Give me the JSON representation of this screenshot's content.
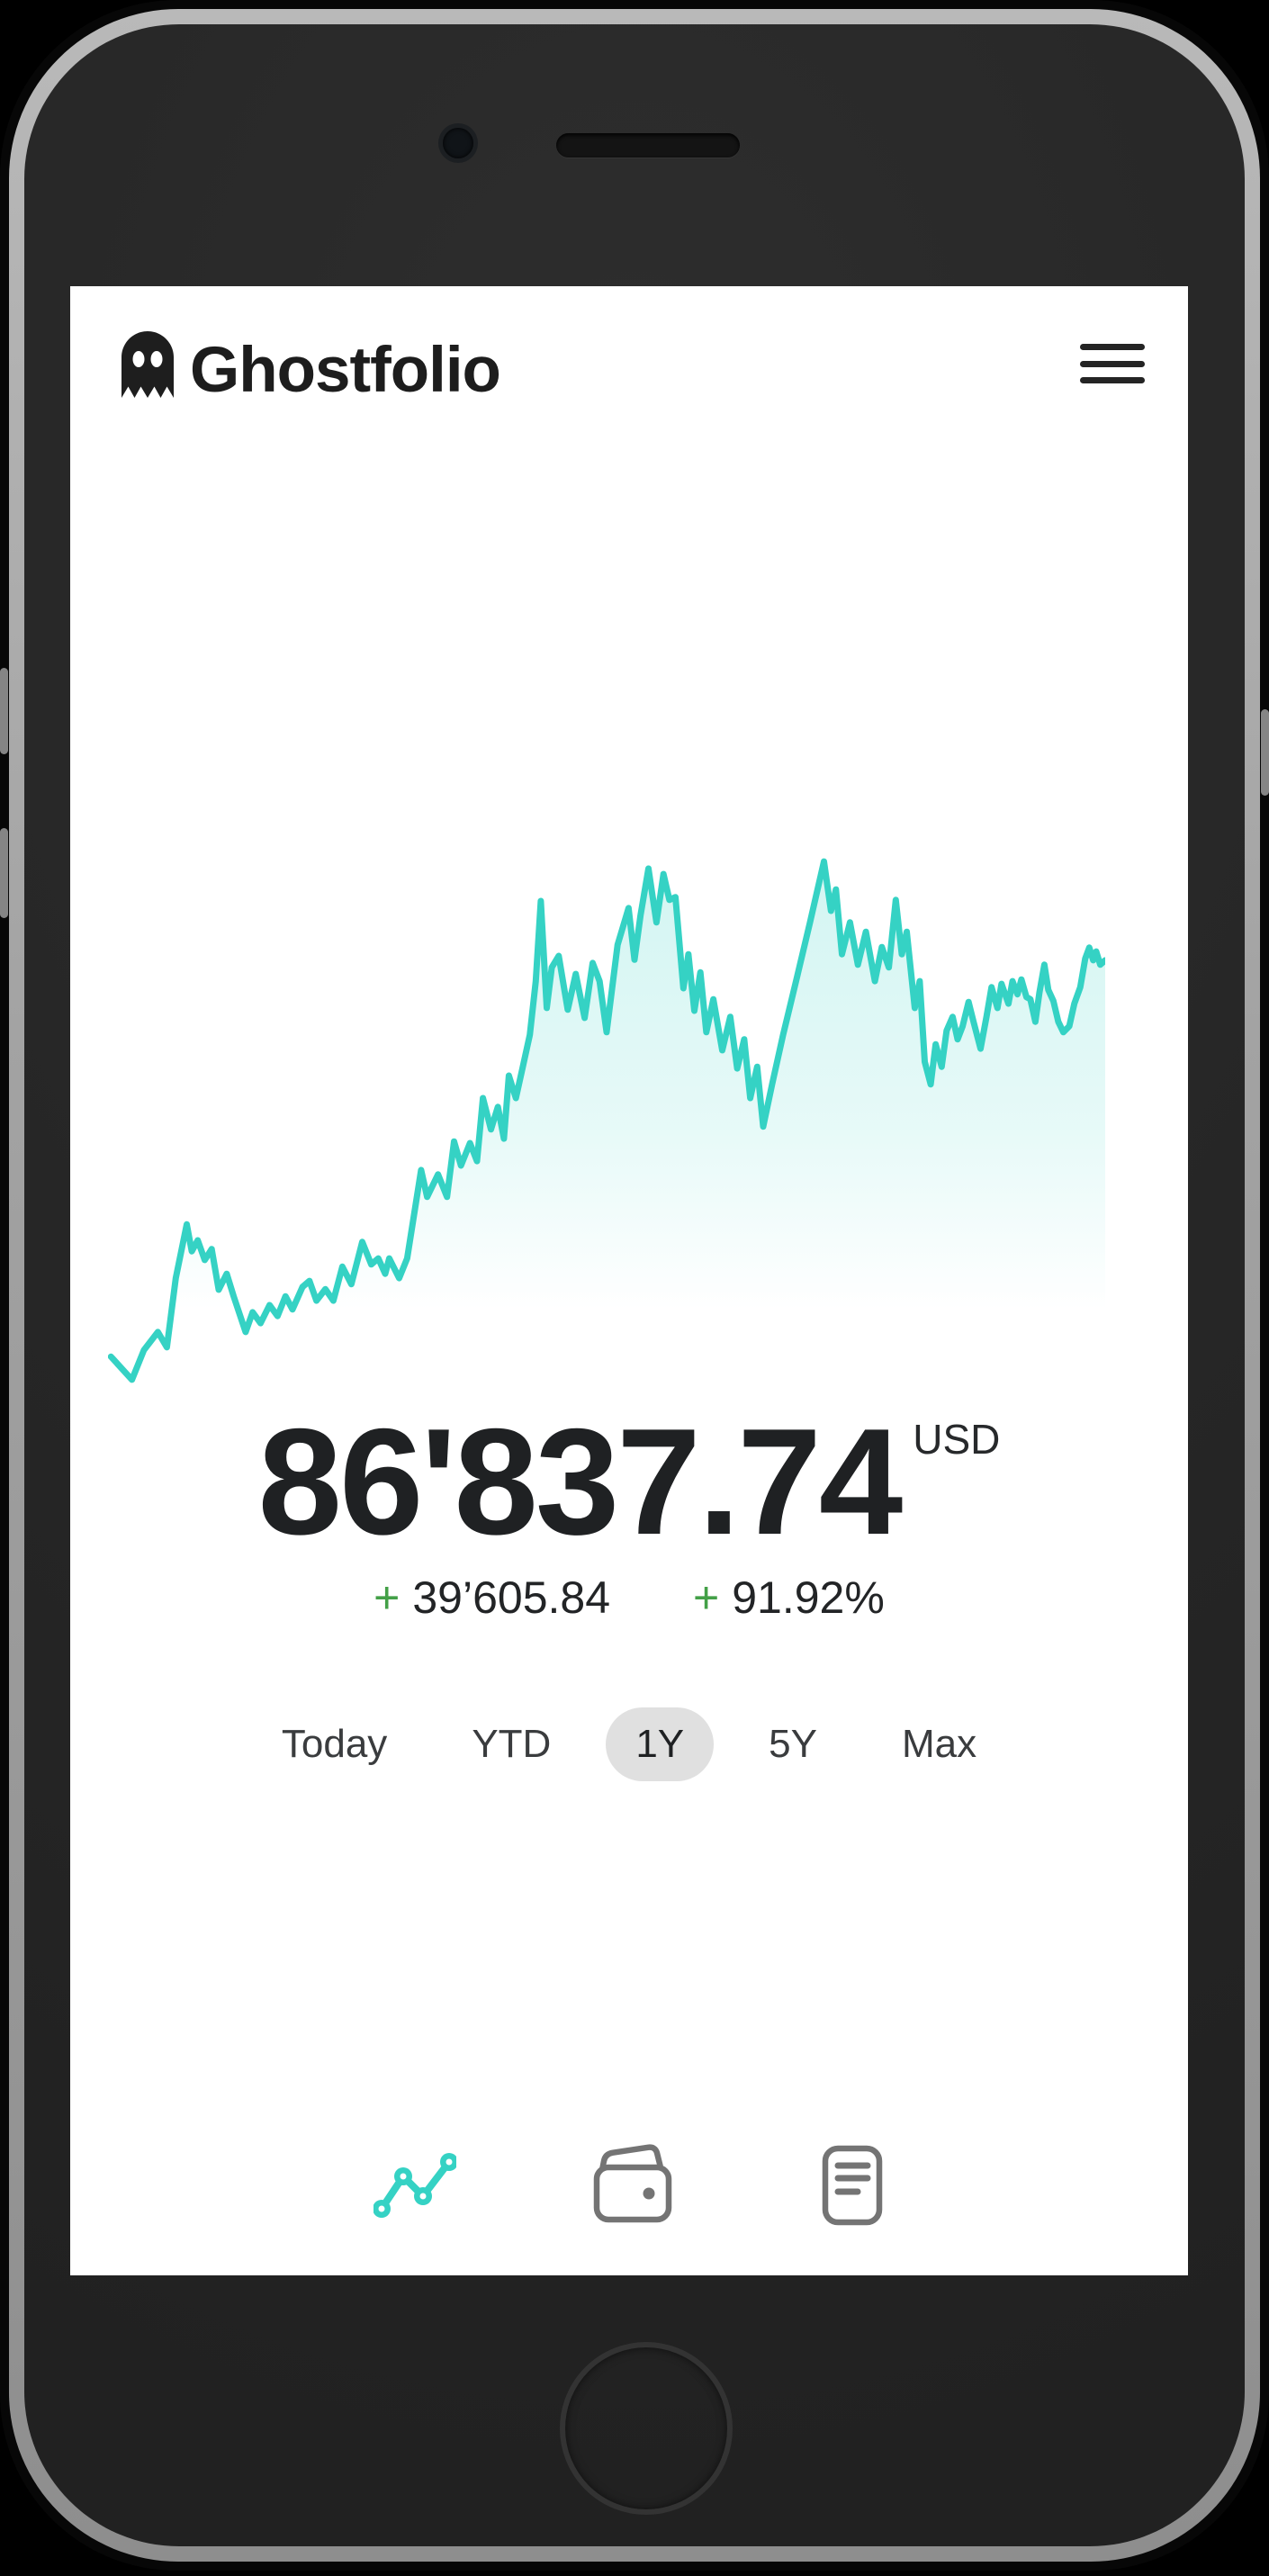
{
  "app": {
    "title": "Ghostfolio"
  },
  "header": {
    "menu_icon": "hamburger-menu"
  },
  "portfolio": {
    "value": "86'837.74",
    "currency": "USD",
    "plus_sign": "+",
    "change_abs": "39’605.84",
    "change_pct": "91.92%"
  },
  "periods": {
    "items": [
      {
        "label": "Today",
        "active": false
      },
      {
        "label": "YTD",
        "active": false
      },
      {
        "label": "1Y",
        "active": true
      },
      {
        "label": "5Y",
        "active": false
      },
      {
        "label": "Max",
        "active": false
      }
    ]
  },
  "tabbar": {
    "tabs": [
      {
        "icon": "analytics-chart-icon",
        "active": true
      },
      {
        "icon": "wallet-icon",
        "active": false
      },
      {
        "icon": "reader-list-icon",
        "active": false
      }
    ]
  },
  "colors": {
    "accent_teal": "#35d2c4",
    "fill_teal_top": "rgba(53,210,196,0.22)",
    "fill_teal_mid": "rgba(53,210,196,0.12)",
    "fill_teal_end": "rgba(53,210,196,0)",
    "positive_green": "#43a047",
    "text_dark": "#1f2123",
    "pill_gray": "#e0e0e0",
    "inactive_icon_gray": "#747474"
  },
  "chart_data": {
    "type": "area",
    "title": "",
    "selected_range": "1Y",
    "unit": "USD",
    "end_value": 86837.74,
    "change_abs": 39605.84,
    "change_pct": 91.92,
    "axes_visible": false,
    "grid": false,
    "legend": false,
    "series": [
      {
        "name": "portfolio-performance-1y",
        "points_pct": [
          [
            0.3,
            93.0
          ],
          [
            2.4,
            97.2
          ],
          [
            3.6,
            91.8
          ],
          [
            5.0,
            88.5
          ],
          [
            5.9,
            91.3
          ],
          [
            6.8,
            78.7
          ],
          [
            7.9,
            68.9
          ],
          [
            8.4,
            73.8
          ],
          [
            9.0,
            71.8
          ],
          [
            9.7,
            75.4
          ],
          [
            10.4,
            73.4
          ],
          [
            11.1,
            80.8
          ],
          [
            11.9,
            77.9
          ],
          [
            12.6,
            82.0
          ],
          [
            13.8,
            88.5
          ],
          [
            14.5,
            84.9
          ],
          [
            15.3,
            86.9
          ],
          [
            16.2,
            83.6
          ],
          [
            17.0,
            85.6
          ],
          [
            17.8,
            82.0
          ],
          [
            18.5,
            84.4
          ],
          [
            19.5,
            80.3
          ],
          [
            20.2,
            79.2
          ],
          [
            20.9,
            82.8
          ],
          [
            21.8,
            80.7
          ],
          [
            22.6,
            82.8
          ],
          [
            23.5,
            76.6
          ],
          [
            24.4,
            79.8
          ],
          [
            25.5,
            72.1
          ],
          [
            26.4,
            76.2
          ],
          [
            27.1,
            75.1
          ],
          [
            27.8,
            77.9
          ],
          [
            28.2,
            75.1
          ],
          [
            29.2,
            78.7
          ],
          [
            30.0,
            75.1
          ],
          [
            31.4,
            59.0
          ],
          [
            32.0,
            63.9
          ],
          [
            33.1,
            59.8
          ],
          [
            34.0,
            63.9
          ],
          [
            34.7,
            53.8
          ],
          [
            35.4,
            58.2
          ],
          [
            36.3,
            54.1
          ],
          [
            37.0,
            57.4
          ],
          [
            37.6,
            45.9
          ],
          [
            38.4,
            51.6
          ],
          [
            39.1,
            47.5
          ],
          [
            39.7,
            53.3
          ],
          [
            40.2,
            41.8
          ],
          [
            40.9,
            45.9
          ],
          [
            41.6,
            40.2
          ],
          [
            42.3,
            34.4
          ],
          [
            42.9,
            24.6
          ],
          [
            43.4,
            10.0
          ],
          [
            44.0,
            29.5
          ],
          [
            44.5,
            22.1
          ],
          [
            45.2,
            20.0
          ],
          [
            46.1,
            29.8
          ],
          [
            46.9,
            23.3
          ],
          [
            47.8,
            31.3
          ],
          [
            48.6,
            21.3
          ],
          [
            49.3,
            24.6
          ],
          [
            50.0,
            33.9
          ],
          [
            51.1,
            18.0
          ],
          [
            52.2,
            11.3
          ],
          [
            52.8,
            20.7
          ],
          [
            53.4,
            12.6
          ],
          [
            54.2,
            4.1
          ],
          [
            55.0,
            13.9
          ],
          [
            55.7,
            5.1
          ],
          [
            56.3,
            9.8
          ],
          [
            56.9,
            9.3
          ],
          [
            57.7,
            25.9
          ],
          [
            58.2,
            19.7
          ],
          [
            58.8,
            30.0
          ],
          [
            59.4,
            23.0
          ],
          [
            60.0,
            33.9
          ],
          [
            60.7,
            27.9
          ],
          [
            61.6,
            37.2
          ],
          [
            62.4,
            31.1
          ],
          [
            63.1,
            40.5
          ],
          [
            63.8,
            35.2
          ],
          [
            64.4,
            45.9
          ],
          [
            65.1,
            40.2
          ],
          [
            65.7,
            51.1
          ],
          [
            66.6,
            43.4
          ],
          [
            67.7,
            34.4
          ],
          [
            69.0,
            24.6
          ],
          [
            70.4,
            13.9
          ],
          [
            71.8,
            2.8
          ],
          [
            72.5,
            11.8
          ],
          [
            73.0,
            7.9
          ],
          [
            73.6,
            19.7
          ],
          [
            74.4,
            13.9
          ],
          [
            75.2,
            21.6
          ],
          [
            76.0,
            15.6
          ],
          [
            76.9,
            24.6
          ],
          [
            77.6,
            18.4
          ],
          [
            78.3,
            22.1
          ],
          [
            79.0,
            9.8
          ],
          [
            79.6,
            19.7
          ],
          [
            80.1,
            15.6
          ],
          [
            80.9,
            29.5
          ],
          [
            81.4,
            24.6
          ],
          [
            81.9,
            39.3
          ],
          [
            82.5,
            43.4
          ],
          [
            83.0,
            36.1
          ],
          [
            83.6,
            40.2
          ],
          [
            84.1,
            33.6
          ],
          [
            84.7,
            31.1
          ],
          [
            85.2,
            35.2
          ],
          [
            85.7,
            32.8
          ],
          [
            86.3,
            28.4
          ],
          [
            86.8,
            32.0
          ],
          [
            87.5,
            36.9
          ],
          [
            88.1,
            31.1
          ],
          [
            88.6,
            25.7
          ],
          [
            89.2,
            29.5
          ],
          [
            89.6,
            25.1
          ],
          [
            90.3,
            28.7
          ],
          [
            90.7,
            24.6
          ],
          [
            91.2,
            27.0
          ],
          [
            91.6,
            24.3
          ],
          [
            92.1,
            27.5
          ],
          [
            92.5,
            27.9
          ],
          [
            93.0,
            32.0
          ],
          [
            93.4,
            26.7
          ],
          [
            93.9,
            21.6
          ],
          [
            94.3,
            26.2
          ],
          [
            94.8,
            28.2
          ],
          [
            95.3,
            32.0
          ],
          [
            95.8,
            33.9
          ],
          [
            96.4,
            32.8
          ],
          [
            96.9,
            28.7
          ],
          [
            97.5,
            25.7
          ],
          [
            98.0,
            20.5
          ],
          [
            98.4,
            18.5
          ],
          [
            98.8,
            20.8
          ],
          [
            99.1,
            19.2
          ],
          [
            99.5,
            21.6
          ],
          [
            100,
            20.8
          ]
        ]
      }
    ]
  }
}
